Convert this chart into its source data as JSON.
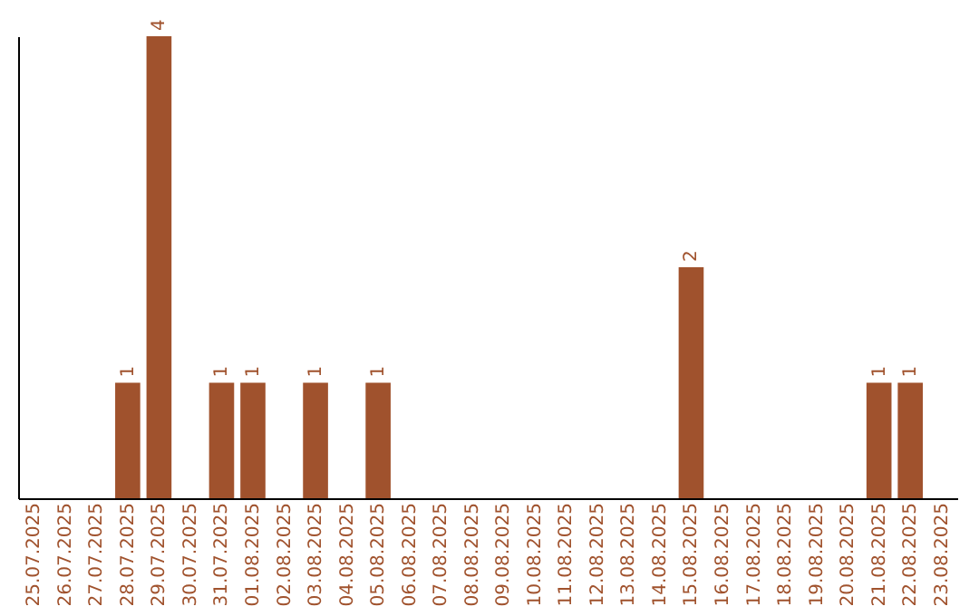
{
  "chart_data": {
    "type": "bar",
    "categories": [
      "25.07.2025",
      "26.07.2025",
      "27.07.2025",
      "28.07.2025",
      "29.07.2025",
      "30.07.2025",
      "31.07.2025",
      "01.08.2025",
      "02.08.2025",
      "03.08.2025",
      "04.08.2025",
      "05.08.2025",
      "06.08.2025",
      "07.08.2025",
      "08.08.2025",
      "09.08.2025",
      "10.08.2025",
      "11.08.2025",
      "12.08.2025",
      "13.08.2025",
      "14.08.2025",
      "15.08.2025",
      "16.08.2025",
      "17.08.2025",
      "18.08.2025",
      "19.08.2025",
      "20.08.2025",
      "21.08.2025",
      "22.08.2025",
      "23.08.2025"
    ],
    "values": [
      0,
      0,
      0,
      1,
      4,
      0,
      1,
      1,
      0,
      1,
      0,
      1,
      0,
      0,
      0,
      0,
      0,
      0,
      0,
      0,
      0,
      2,
      0,
      0,
      0,
      0,
      0,
      1,
      1,
      0
    ],
    "value_labels": [
      null,
      null,
      null,
      "1",
      "4",
      null,
      "1",
      "1",
      null,
      "1",
      null,
      "1",
      null,
      null,
      null,
      null,
      null,
      null,
      null,
      null,
      null,
      "2",
      null,
      null,
      null,
      null,
      null,
      "1",
      "1",
      null
    ],
    "color": "#a0522d",
    "ylim": [
      0,
      4
    ],
    "tick_labels": "x"
  }
}
